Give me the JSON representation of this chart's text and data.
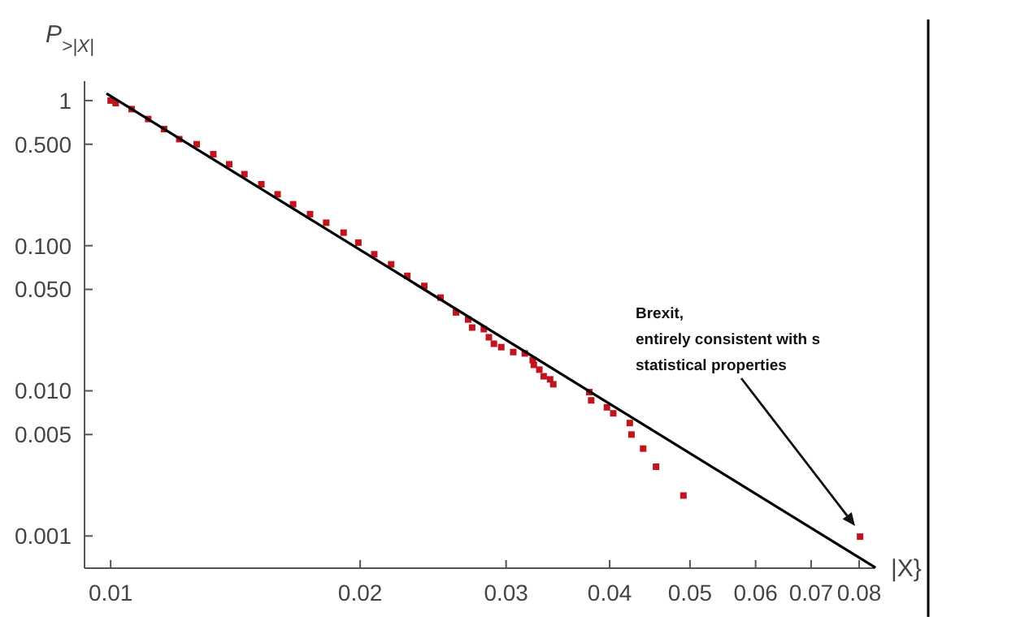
{
  "chart_data": {
    "type": "scatter",
    "xlabel": "|X}",
    "ylabel": "P$_{>|X|}$",
    "log": "xy",
    "xlim": [
      0.0093,
      0.0835
    ],
    "ylim": [
      0.0006,
      1.36
    ],
    "xticks": [
      {
        "value": 0.01,
        "label": "0.01"
      },
      {
        "value": 0.02,
        "label": "0.02"
      },
      {
        "value": 0.03,
        "label": "0.03"
      },
      {
        "value": 0.04,
        "label": "0.04"
      },
      {
        "value": 0.05,
        "label": "0.05"
      },
      {
        "value": 0.06,
        "label": "0.06"
      },
      {
        "value": 0.07,
        "label": "0.07"
      },
      {
        "value": 0.08,
        "label": "0.08"
      }
    ],
    "yticks": [
      {
        "value": 0.001,
        "label": "0.001"
      },
      {
        "value": 0.005,
        "label": "0.005"
      },
      {
        "value": 0.01,
        "label": "0.010"
      },
      {
        "value": 0.05,
        "label": "0.050"
      },
      {
        "value": 0.1,
        "label": "0.100"
      },
      {
        "value": 0.5,
        "label": "0.500"
      },
      1
    ],
    "grid": false,
    "marker": "square",
    "series": [
      {
        "color": "#c0141e",
        "x": [
          0.01,
          0.01014,
          0.0106,
          0.0111,
          0.0116,
          0.0121,
          0.0127,
          0.0133,
          0.0139,
          0.0145,
          0.0152,
          0.0159,
          0.0166,
          0.0174,
          0.0182,
          0.0191,
          0.0199,
          0.0208,
          0.0218,
          0.0228,
          0.0239,
          0.025,
          0.0261,
          0.027,
          0.0273,
          0.0282,
          0.0286,
          0.029,
          0.0296,
          0.0306,
          0.0316,
          0.0323,
          0.0324,
          0.0329,
          0.0333,
          0.0339,
          0.0342,
          0.0378,
          0.038,
          0.0397,
          0.0404,
          0.0423,
          0.0425,
          0.0439,
          0.0455,
          0.0491,
          0.0802
        ],
        "values": [
          1.0,
          0.96,
          0.873,
          0.746,
          0.636,
          0.542,
          0.5,
          0.427,
          0.364,
          0.311,
          0.265,
          0.226,
          0.193,
          0.165,
          0.144,
          0.123,
          0.105,
          0.0873,
          0.0744,
          0.062,
          0.0528,
          0.0439,
          0.0347,
          0.031,
          0.0273,
          0.0266,
          0.0234,
          0.0211,
          0.02,
          0.0185,
          0.0181,
          0.0163,
          0.0151,
          0.014,
          0.0126,
          0.012,
          0.0111,
          0.0098,
          0.0086,
          0.0077,
          0.007,
          0.006,
          0.005,
          0.004,
          0.003,
          0.0019,
          0.00099
        ]
      },
      {
        "type": "line",
        "color": "#000000",
        "line_style": "solid",
        "marker": "none",
        "x": [
          0.00991,
          0.0835
        ],
        "values": [
          1.108,
          0.00061
        ]
      }
    ],
    "annotations": [
      "Brexit,\nentirely consistent with s\nstatistical properties"
    ]
  }
}
